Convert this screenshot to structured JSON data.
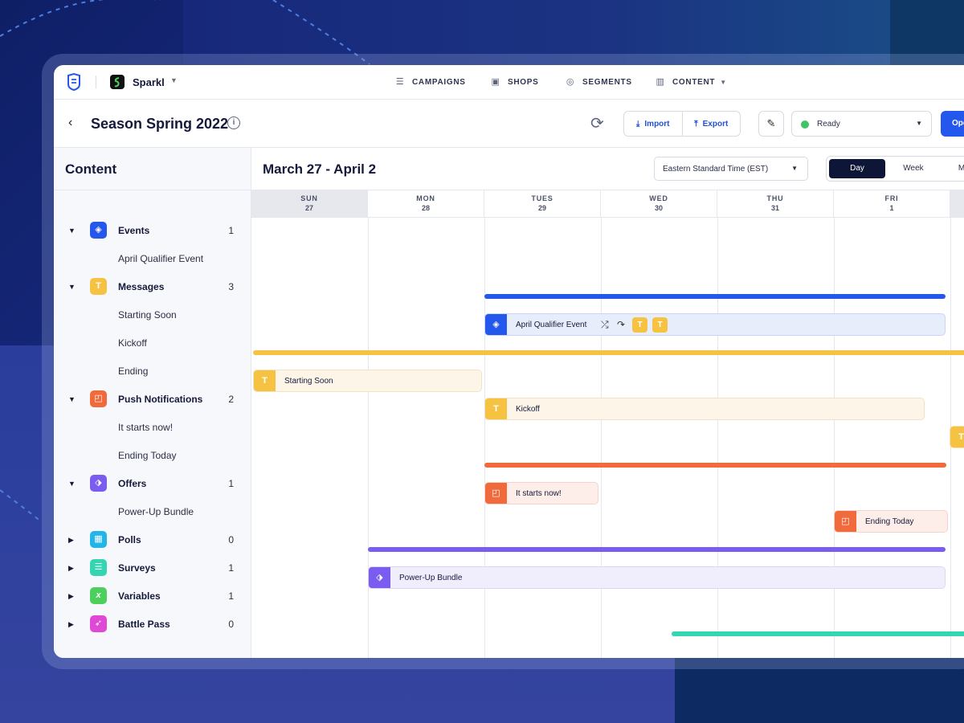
{
  "nav": {
    "app_name": "Sparkl",
    "items": [
      {
        "label": "CAMPAIGNS",
        "icon": "sliders-icon"
      },
      {
        "label": "SHOPS",
        "icon": "store-icon"
      },
      {
        "label": "SEGMENTS",
        "icon": "target-icon"
      },
      {
        "label": "CONTENT",
        "icon": "layout-icon"
      }
    ]
  },
  "header": {
    "title": "Season Spring 2022",
    "import_label": "Import",
    "export_label": "Export",
    "status": "Ready",
    "status_color": "#3fc46a",
    "primary_label": "Ope"
  },
  "sidebar": {
    "title": "Content",
    "groups": [
      {
        "label": "Events",
        "count": "1",
        "color": "#2458ec",
        "icon": "ticket-icon",
        "expanded": true,
        "children": [
          "April Qualifier Event"
        ]
      },
      {
        "label": "Messages",
        "count": "3",
        "color": "#f5c242",
        "icon": "text-icon",
        "expanded": true,
        "children": [
          "Starting Soon",
          "Kickoff",
          "Ending"
        ]
      },
      {
        "label": "Push Notifications",
        "count": "2",
        "color": "#f06a3c",
        "icon": "notification-icon",
        "expanded": true,
        "children": [
          "It starts now!",
          "Ending Today"
        ]
      },
      {
        "label": "Offers",
        "count": "1",
        "color": "#7a5cf0",
        "icon": "tag-icon",
        "expanded": true,
        "children": [
          "Power-Up Bundle"
        ]
      },
      {
        "label": "Polls",
        "count": "0",
        "color": "#23b4e8",
        "icon": "grid-icon",
        "expanded": false,
        "children": []
      },
      {
        "label": "Surveys",
        "count": "1",
        "color": "#33d6b0",
        "icon": "list-icon",
        "expanded": false,
        "children": []
      },
      {
        "label": "Variables",
        "count": "1",
        "color": "#4ccf5c",
        "icon": "variable-icon",
        "expanded": false,
        "children": []
      },
      {
        "label": "Battle Pass",
        "count": "0",
        "color": "#e048d6",
        "icon": "rocket-icon",
        "expanded": false,
        "children": []
      }
    ]
  },
  "calendar": {
    "range": "March 27 - April 2",
    "timezone": "Eastern Standard Time (EST)",
    "views": [
      "Day",
      "Week",
      "M"
    ],
    "active_view": "Day",
    "days": [
      {
        "name": "SUN",
        "num": "27"
      },
      {
        "name": "MON",
        "num": "28"
      },
      {
        "name": "TUES",
        "num": "29"
      },
      {
        "name": "WED",
        "num": "30"
      },
      {
        "name": "THU",
        "num": "31"
      },
      {
        "name": "FRI",
        "num": "1"
      }
    ],
    "events": [
      {
        "label": "April Qualifier Event",
        "color": "#2458ec",
        "bg": "#e8edfc",
        "icon": "ticket-icon"
      },
      {
        "label": "Starting Soon",
        "color": "#f5c242",
        "bg": "#fdf6e8",
        "icon": "text-icon"
      },
      {
        "label": "Kickoff",
        "color": "#f5c242",
        "bg": "#fdf6e8",
        "icon": "text-icon"
      },
      {
        "label": "It starts now!",
        "color": "#f06a3c",
        "bg": "#fdeeea",
        "icon": "notification-icon"
      },
      {
        "label": "Ending Today",
        "color": "#f06a3c",
        "bg": "#fdeeea",
        "icon": "notification-icon"
      },
      {
        "label": "Power-Up Bundle",
        "color": "#7a5cf0",
        "bg": "#f0eefc",
        "icon": "tag-icon"
      }
    ]
  }
}
